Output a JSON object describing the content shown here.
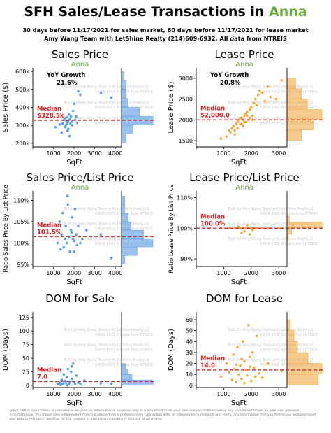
{
  "header": {
    "title_prefix": "SFH Sales/Lease Transactions in",
    "city": "Anna",
    "subtitle1": "30 days before 11/17/2021 for sales market, 60 days before 11/17/2021 for lease market",
    "subtitle2": "Amy Wang Team with LetShine Realty (214)609-6932, All data from NTREIS"
  },
  "watermark": "Built by Amy Wang Team with LetShine Realty (214)609-6932 All data from NTREIS",
  "disclaimer": "DISCLAIMER: Our content is intended to be used for informational purposes only. It is important to do your own analysis before making any investment based on your own personal circumstances. You should take independent financial advice from a professional in connection with, or independently research and verify, any information that you find on our website/report and wish to rely upon, whether for the purpose of making an investment decision or otherwise.",
  "colors": {
    "blue": "#4a90e2",
    "orange": "#f0a030",
    "median_line": "#d62728",
    "city": "#6aab3b"
  },
  "chart_data": [
    {
      "type": "scatter",
      "title": "Sales Price",
      "city": "Anna",
      "xlabel": "SqFt",
      "ylabel": "Sales Price ($)",
      "xlim": [
        0,
        4300
      ],
      "ylim": [
        180000,
        620000
      ],
      "xticks": [
        0,
        1000,
        2000,
        3000,
        4000
      ],
      "xtick_labels": [
        "",
        "1000",
        "2000",
        "3000",
        "4000"
      ],
      "yticks": [
        200000,
        300000,
        400000,
        500000,
        600000
      ],
      "ytick_labels": [
        "200k",
        "300k",
        "400k",
        "500k",
        "600k"
      ],
      "growth_label": "YoY Growth",
      "growth_value": "21.6%",
      "median_label": "Median",
      "median_text": "$328.5k",
      "median": 328500,
      "color": "blue",
      "points": [
        [
          1450,
          310000
        ],
        [
          1500,
          330000
        ],
        [
          1550,
          340000
        ],
        [
          1600,
          300000
        ],
        [
          1620,
          325000
        ],
        [
          1650,
          345000
        ],
        [
          1700,
          320000
        ],
        [
          1720,
          280000
        ],
        [
          1750,
          360000
        ],
        [
          1800,
          335000
        ],
        [
          1820,
          310000
        ],
        [
          1850,
          350000
        ],
        [
          1900,
          300000
        ],
        [
          1950,
          380000
        ],
        [
          2000,
          420000
        ],
        [
          2050,
          330000
        ],
        [
          2100,
          350000
        ],
        [
          1400,
          260000
        ],
        [
          1300,
          305000
        ],
        [
          1680,
          270000
        ],
        [
          2200,
          490000
        ],
        [
          1100,
          290000
        ],
        [
          2300,
          470000
        ],
        [
          3300,
          480000
        ],
        [
          3800,
          455000
        ],
        [
          1780,
          240000
        ],
        [
          1560,
          290000
        ],
        [
          2150,
          315000
        ],
        [
          1880,
          320000
        ],
        [
          1660,
          310000
        ]
      ],
      "hist_edges": [
        200000,
        250000,
        300000,
        350000,
        400000,
        450000,
        500000,
        550000,
        600000
      ],
      "hist_counts": [
        2,
        5,
        14,
        8,
        3,
        2,
        2,
        1
      ]
    },
    {
      "type": "scatter",
      "title": "Lease Price",
      "city": "Anna",
      "xlabel": "SqFt",
      "ylabel": "Lease Price ($)",
      "xlim": [
        0,
        3300
      ],
      "ylim": [
        1350,
        3250
      ],
      "xticks": [
        0,
        1000,
        2000,
        3000
      ],
      "xtick_labels": [
        "",
        "1000",
        "2000",
        "3000"
      ],
      "yticks": [
        1500,
        2000,
        2500,
        3000
      ],
      "ytick_labels": [
        "1500",
        "2000",
        "2500",
        "3000"
      ],
      "growth_label": "YoY Growth",
      "growth_value": "20.8%",
      "median_label": "Median",
      "median_text": "$2,000.0",
      "median": 2000,
      "color": "orange",
      "points": [
        [
          900,
          1550
        ],
        [
          1100,
          1600
        ],
        [
          1250,
          1700
        ],
        [
          1300,
          1800
        ],
        [
          1350,
          1850
        ],
        [
          1400,
          1750
        ],
        [
          1450,
          1900
        ],
        [
          1500,
          1950
        ],
        [
          1550,
          2000
        ],
        [
          1600,
          2050
        ],
        [
          1650,
          1900
        ],
        [
          1700,
          2000
        ],
        [
          1750,
          2100
        ],
        [
          1800,
          2150
        ],
        [
          1850,
          2200
        ],
        [
          1900,
          2000
        ],
        [
          1950,
          2250
        ],
        [
          2000,
          2300
        ],
        [
          2050,
          2100
        ],
        [
          2100,
          2400
        ],
        [
          2150,
          2500
        ],
        [
          2200,
          2350
        ],
        [
          2250,
          2600
        ],
        [
          2300,
          2700
        ],
        [
          2400,
          2650
        ],
        [
          2500,
          2450
        ],
        [
          2600,
          2800
        ],
        [
          2700,
          2550
        ],
        [
          2900,
          2500
        ],
        [
          3100,
          2950
        ],
        [
          1400,
          1650
        ],
        [
          1500,
          1800
        ],
        [
          1650,
          2050
        ],
        [
          1700,
          1850
        ],
        [
          1800,
          1950
        ],
        [
          1950,
          2050
        ],
        [
          2050,
          2000
        ],
        [
          1600,
          1900
        ],
        [
          1750,
          1950
        ],
        [
          1850,
          2100
        ],
        [
          1200,
          1750
        ]
      ],
      "hist_edges": [
        1500,
        1750,
        2000,
        2250,
        2500,
        2750,
        3000
      ],
      "hist_counts": [
        5,
        9,
        12,
        7,
        5,
        3
      ]
    },
    {
      "type": "scatter",
      "title": "Sales Price/List Price",
      "city": "Anna",
      "xlabel": "SqFt",
      "ylabel": "Ratio Sales Price By List Price",
      "xlim": [
        0,
        4300
      ],
      "ylim": [
        0.945,
        1.122
      ],
      "xticks": [
        0,
        1000,
        2000,
        3000,
        4000
      ],
      "xtick_labels": [
        "",
        "1000",
        "2000",
        "3000",
        "4000"
      ],
      "yticks": [
        0.95,
        1.0,
        1.05,
        1.1
      ],
      "ytick_labels": [
        "95%",
        "100%",
        "105%",
        "110%"
      ],
      "median_label": "Median",
      "median_text": "101.5%",
      "median": 1.015,
      "color": "blue",
      "points": [
        [
          1200,
          1.0
        ],
        [
          1300,
          1.05
        ],
        [
          1400,
          1.02
        ],
        [
          1450,
          1.07
        ],
        [
          1500,
          0.99
        ],
        [
          1550,
          1.01
        ],
        [
          1600,
          1.04
        ],
        [
          1650,
          1.0
        ],
        [
          1700,
          1.09
        ],
        [
          1750,
          1.015
        ],
        [
          1800,
          0.98
        ],
        [
          1850,
          1.03
        ],
        [
          1900,
          1.06
        ],
        [
          1950,
          1.01
        ],
        [
          2000,
          1.005
        ],
        [
          2050,
          1.08
        ],
        [
          2100,
          1.02
        ],
        [
          2150,
          0.995
        ],
        [
          2200,
          1.04
        ],
        [
          2300,
          1.0
        ],
        [
          2400,
          1.01
        ],
        [
          2600,
          1.03
        ],
        [
          3300,
          1.02
        ],
        [
          3800,
          0.965
        ],
        [
          1350,
          0.985
        ],
        [
          1680,
          1.11
        ],
        [
          1880,
          1.025
        ],
        [
          2000,
          0.98
        ]
      ],
      "hist_edges": [
        0.95,
        0.97,
        0.99,
        1.01,
        1.03,
        1.05,
        1.07,
        1.09,
        1.11
      ],
      "hist_counts": [
        1,
        5,
        10,
        7,
        3,
        2,
        1,
        1
      ]
    },
    {
      "type": "scatter",
      "title": "Lease Price/List Price",
      "city": "Anna",
      "xlabel": "SqFt",
      "ylabel": "Ratio Lease Price By List Price",
      "xlim": [
        0,
        3300
      ],
      "ylim": [
        0.875,
        1.122
      ],
      "xticks": [
        0,
        1000,
        2000,
        3000
      ],
      "xtick_labels": [
        "",
        "1000",
        "2000",
        "3000"
      ],
      "yticks": [
        0.9,
        1.0,
        1.1
      ],
      "ytick_labels": [
        "90%",
        "100%",
        "110%"
      ],
      "median_label": "Median",
      "median_text": "100.0%",
      "median": 1.0,
      "color": "orange",
      "points": [
        [
          900,
          1.0
        ],
        [
          1200,
          1.0
        ],
        [
          1400,
          1.0
        ],
        [
          1500,
          1.0
        ],
        [
          1600,
          1.0
        ],
        [
          1700,
          1.0
        ],
        [
          1800,
          1.0
        ],
        [
          1900,
          1.0
        ],
        [
          2000,
          1.0
        ],
        [
          2100,
          1.0
        ],
        [
          2200,
          1.0
        ],
        [
          2400,
          1.0
        ],
        [
          2600,
          1.0
        ],
        [
          3000,
          1.0
        ],
        [
          1650,
          0.985
        ],
        [
          1750,
          0.99
        ],
        [
          1850,
          1.01
        ],
        [
          2050,
          0.995
        ],
        [
          1550,
          1.005
        ],
        [
          1950,
          0.98
        ]
      ],
      "hist_edges": [
        0.96,
        0.98,
        1.0,
        1.02,
        1.04
      ],
      "hist_counts": [
        1,
        4,
        30,
        2
      ]
    },
    {
      "type": "scatter",
      "title": "DOM for Sale",
      "city": "",
      "xlabel": "SqFt",
      "ylabel": "DOM (Days)",
      "xlim": [
        0,
        4300
      ],
      "ylim": [
        -4,
        135
      ],
      "xticks": [
        0,
        1000,
        2000,
        3000,
        4000
      ],
      "xtick_labels": [
        "",
        "1000",
        "2000",
        "3000",
        "4000"
      ],
      "yticks": [
        0,
        25,
        50,
        75,
        100,
        125
      ],
      "ytick_labels": [
        "0",
        "25",
        "50",
        "75",
        "100",
        "125"
      ],
      "median_label": "Median",
      "median_text": "7.0",
      "median": 7,
      "color": "blue",
      "points": [
        [
          1200,
          2
        ],
        [
          1300,
          5
        ],
        [
          1400,
          10
        ],
        [
          1450,
          3
        ],
        [
          1500,
          20
        ],
        [
          1550,
          8
        ],
        [
          1600,
          4
        ],
        [
          1650,
          15
        ],
        [
          1700,
          30
        ],
        [
          1750,
          2
        ],
        [
          1800,
          7
        ],
        [
          1850,
          25
        ],
        [
          1900,
          12
        ],
        [
          1950,
          40
        ],
        [
          2000,
          6
        ],
        [
          2050,
          3
        ],
        [
          2100,
          18
        ],
        [
          2200,
          5
        ],
        [
          2300,
          2
        ],
        [
          2500,
          9
        ],
        [
          3300,
          4
        ],
        [
          3800,
          3
        ],
        [
          1350,
          1
        ],
        [
          1680,
          0
        ],
        [
          1880,
          35
        ]
      ],
      "hist_edges": [
        0,
        10,
        20,
        30,
        40
      ],
      "hist_counts": [
        15,
        5,
        3,
        2
      ]
    },
    {
      "type": "scatter",
      "title": "DOM for Lease",
      "city": "",
      "xlabel": "SqFt",
      "ylabel": "DOM (Days)",
      "xlim": [
        0,
        3300
      ],
      "ylim": [
        -2,
        67
      ],
      "xticks": [
        0,
        1000,
        2000,
        3000
      ],
      "xtick_labels": [
        "",
        "1000",
        "2000",
        "3000"
      ],
      "yticks": [
        0,
        10,
        20,
        30,
        40,
        50,
        60
      ],
      "ytick_labels": [
        "0",
        "10",
        "20",
        "30",
        "40",
        "50",
        "60"
      ],
      "median_label": "Median",
      "median_text": "14.0",
      "median": 14,
      "color": "orange",
      "points": [
        [
          900,
          8
        ],
        [
          1100,
          20
        ],
        [
          1200,
          12
        ],
        [
          1300,
          5
        ],
        [
          1350,
          28
        ],
        [
          1400,
          15
        ],
        [
          1450,
          3
        ],
        [
          1500,
          35
        ],
        [
          1550,
          10
        ],
        [
          1600,
          18
        ],
        [
          1650,
          6
        ],
        [
          1700,
          40
        ],
        [
          1750,
          22
        ],
        [
          1800,
          14
        ],
        [
          1850,
          9
        ],
        [
          1900,
          55
        ],
        [
          1950,
          26
        ],
        [
          2000,
          4
        ],
        [
          2050,
          30
        ],
        [
          2100,
          16
        ],
        [
          2200,
          45
        ],
        [
          2300,
          11
        ],
        [
          2400,
          7
        ],
        [
          2600,
          20
        ],
        [
          3100,
          13
        ],
        [
          1650,
          24
        ],
        [
          1750,
          2
        ],
        [
          1950,
          17
        ],
        [
          2150,
          8
        ],
        [
          1450,
          19
        ]
      ],
      "hist_edges": [
        0,
        10,
        20,
        30,
        40,
        50,
        60
      ],
      "hist_counts": [
        9,
        10,
        6,
        3,
        2,
        1
      ]
    }
  ]
}
